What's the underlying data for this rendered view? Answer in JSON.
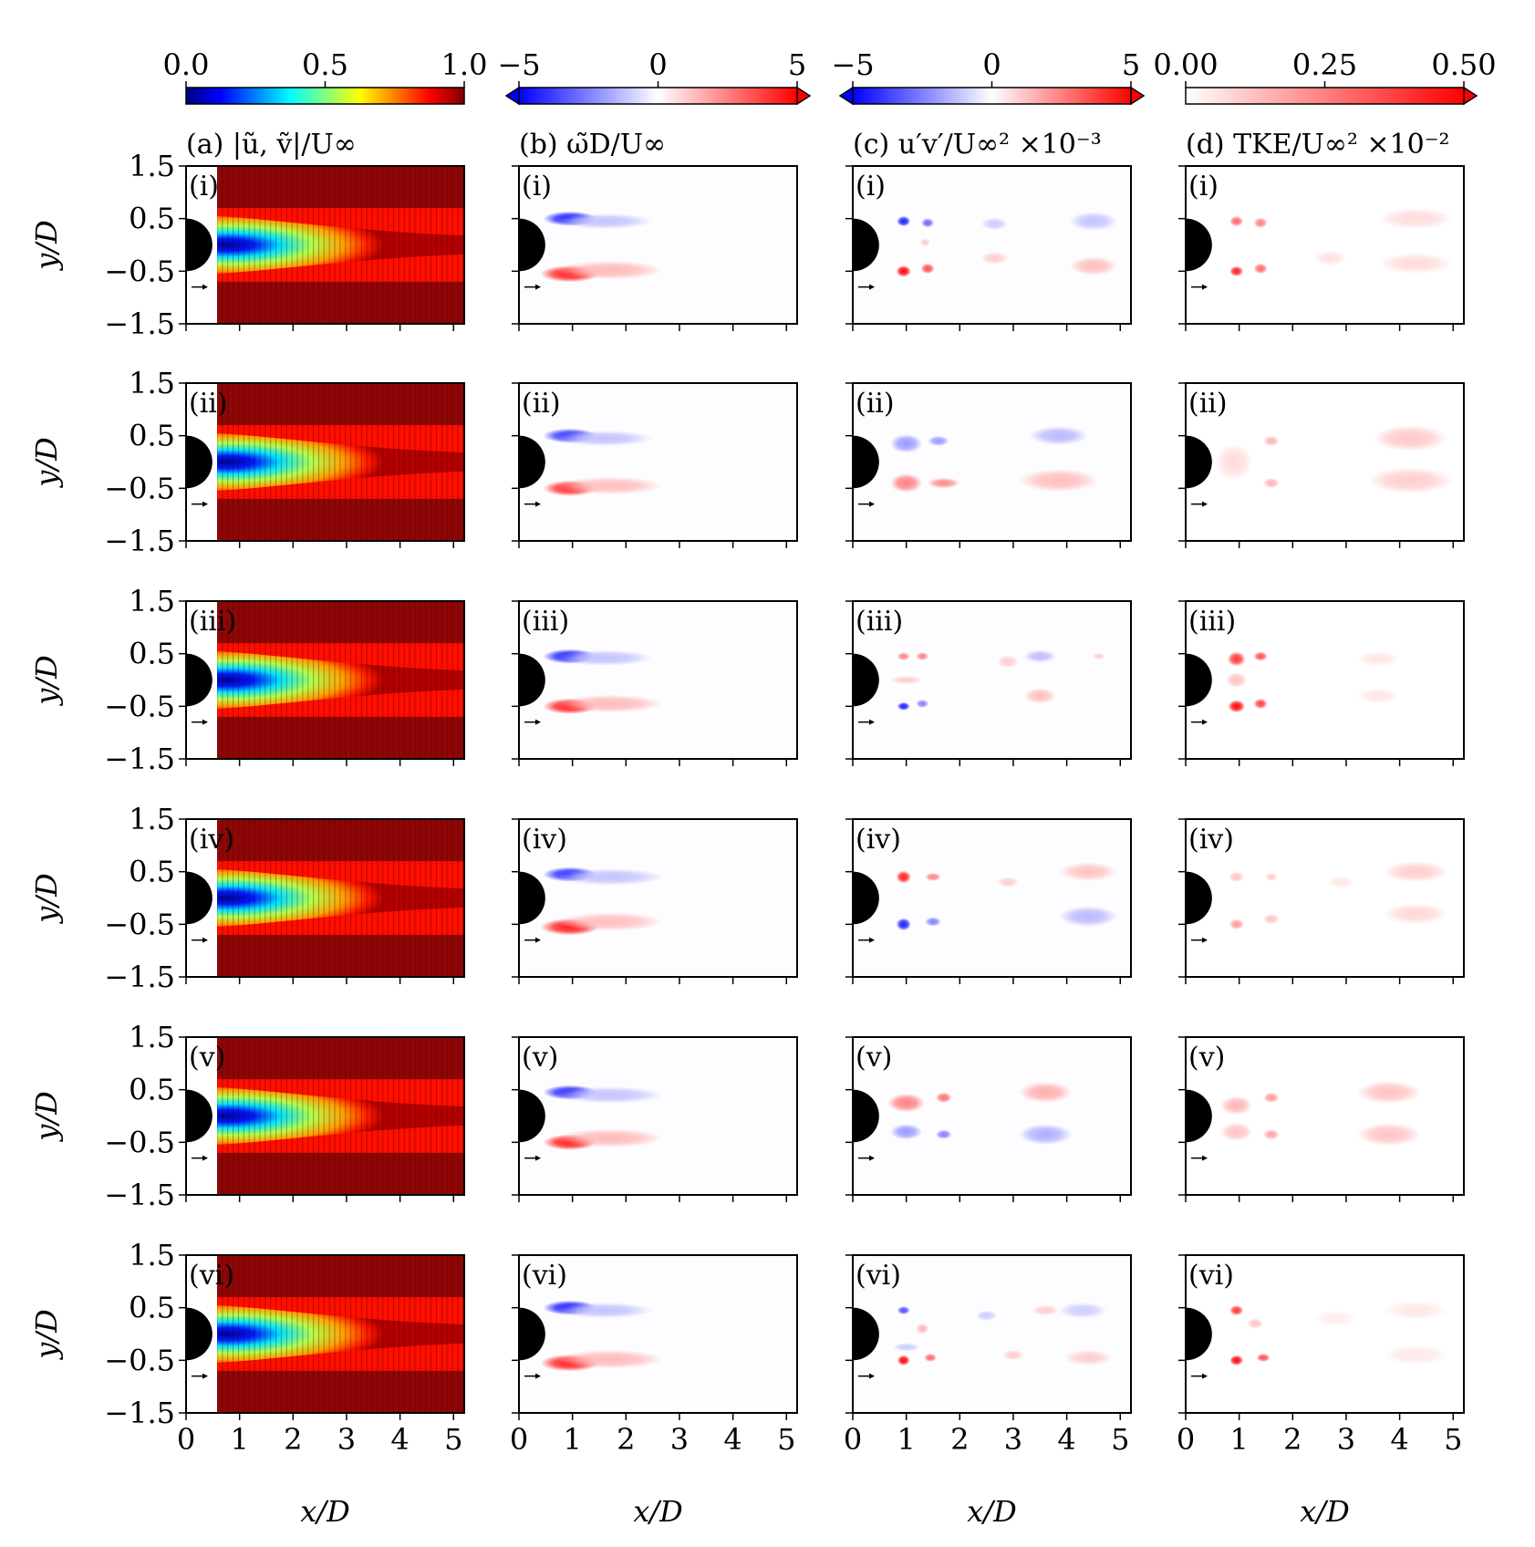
{
  "figure": {
    "ylabel": "y/D",
    "xlabel": "x/D",
    "row_labels": [
      "(i)",
      "(ii)",
      "(iii)",
      "(iv)",
      "(v)",
      "(vi)"
    ],
    "xticks": [
      "0",
      "1",
      "2",
      "3",
      "4",
      "5"
    ],
    "yticks": [
      "1.5",
      "0.5",
      "−0.5",
      "−1.5"
    ]
  },
  "chart_data": [
    {
      "type": "heatmap",
      "panel": "(a)",
      "title": "(a) |ũ, ṽ|/U∞",
      "colormap": "jet",
      "colorbar": {
        "range": [
          0.0,
          1.0
        ],
        "ticks": [
          "0.0",
          "0.5",
          "1.0"
        ],
        "multiplier": "",
        "extend": "none"
      },
      "xlim": [
        0,
        5.2
      ],
      "ylim": [
        -1.5,
        1.5
      ],
      "description_values": {
        "freestream": 1.0,
        "recirculation_min": 0.0
      },
      "cases": [
        "(i)",
        "(ii)",
        "(iii)",
        "(iv)",
        "(v)",
        "(vi)"
      ],
      "blobs": [
        [],
        [],
        [],
        [],
        [],
        []
      ]
    },
    {
      "type": "heatmap",
      "panel": "(b)",
      "title": "(b) ω̃D/U∞",
      "colormap": "bwr",
      "colorbar": {
        "range": [
          -5,
          5
        ],
        "ticks": [
          "−5",
          "0",
          "5"
        ],
        "multiplier": "",
        "extend": "both"
      },
      "xlim": [
        0,
        5.2
      ],
      "ylim": [
        -1.5,
        1.5
      ],
      "cases": [
        "(i)",
        "(ii)",
        "(iii)",
        "(iv)",
        "(v)",
        "(vi)"
      ],
      "blobs": [
        [
          {
            "x": 0.95,
            "y": 0.5,
            "rx": 0.5,
            "ry": 0.14,
            "v": -4.5
          },
          {
            "x": 1.6,
            "y": 0.45,
            "rx": 0.9,
            "ry": 0.15,
            "v": -1.2
          },
          {
            "x": 0.95,
            "y": -0.55,
            "rx": 0.55,
            "ry": 0.16,
            "v": 4.5
          },
          {
            "x": 1.7,
            "y": -0.48,
            "rx": 1.0,
            "ry": 0.18,
            "v": 1.4
          }
        ],
        [
          {
            "x": 0.95,
            "y": 0.5,
            "rx": 0.5,
            "ry": 0.14,
            "v": -4.0
          },
          {
            "x": 1.6,
            "y": 0.45,
            "rx": 0.9,
            "ry": 0.15,
            "v": -1.2
          },
          {
            "x": 0.95,
            "y": -0.5,
            "rx": 0.5,
            "ry": 0.15,
            "v": 4.2
          },
          {
            "x": 1.7,
            "y": -0.45,
            "rx": 1.0,
            "ry": 0.17,
            "v": 1.3
          }
        ],
        [
          {
            "x": 0.95,
            "y": 0.45,
            "rx": 0.5,
            "ry": 0.14,
            "v": -4.5
          },
          {
            "x": 1.6,
            "y": 0.42,
            "rx": 0.9,
            "ry": 0.15,
            "v": -1.2
          },
          {
            "x": 0.95,
            "y": -0.5,
            "rx": 0.5,
            "ry": 0.15,
            "v": 4.5
          },
          {
            "x": 1.7,
            "y": -0.45,
            "rx": 1.0,
            "ry": 0.17,
            "v": 1.4
          }
        ],
        [
          {
            "x": 0.95,
            "y": 0.45,
            "rx": 0.5,
            "ry": 0.14,
            "v": -4.2
          },
          {
            "x": 1.7,
            "y": 0.4,
            "rx": 1.0,
            "ry": 0.16,
            "v": -1.2
          },
          {
            "x": 0.95,
            "y": -0.55,
            "rx": 0.55,
            "ry": 0.16,
            "v": 4.5
          },
          {
            "x": 1.7,
            "y": -0.45,
            "rx": 1.0,
            "ry": 0.18,
            "v": 1.3
          }
        ],
        [
          {
            "x": 0.95,
            "y": 0.45,
            "rx": 0.5,
            "ry": 0.14,
            "v": -4.3
          },
          {
            "x": 1.7,
            "y": 0.4,
            "rx": 1.0,
            "ry": 0.16,
            "v": -1.2
          },
          {
            "x": 0.95,
            "y": -0.5,
            "rx": 0.5,
            "ry": 0.15,
            "v": 4.5
          },
          {
            "x": 1.7,
            "y": -0.42,
            "rx": 1.0,
            "ry": 0.18,
            "v": 1.4
          }
        ],
        [
          {
            "x": 0.95,
            "y": 0.5,
            "rx": 0.5,
            "ry": 0.14,
            "v": -4.5
          },
          {
            "x": 1.6,
            "y": 0.45,
            "rx": 0.9,
            "ry": 0.15,
            "v": -1.2
          },
          {
            "x": 0.95,
            "y": -0.55,
            "rx": 0.55,
            "ry": 0.16,
            "v": 4.5
          },
          {
            "x": 1.7,
            "y": -0.48,
            "rx": 1.0,
            "ry": 0.18,
            "v": 1.4
          }
        ]
      ]
    },
    {
      "type": "heatmap",
      "panel": "(c)",
      "title": "(c) u′v′/U∞² ×10⁻³",
      "colormap": "bwr",
      "colorbar": {
        "range": [
          -5,
          5
        ],
        "ticks": [
          "−5",
          "0",
          "5"
        ],
        "multiplier": "×10⁻³",
        "extend": "both"
      },
      "xlim": [
        0,
        5.2
      ],
      "ylim": [
        -1.5,
        1.5
      ],
      "cases": [
        "(i)",
        "(ii)",
        "(iii)",
        "(iv)",
        "(v)",
        "(vi)"
      ],
      "blobs": [
        [
          {
            "x": 0.95,
            "y": 0.45,
            "rx": 0.13,
            "ry": 0.1,
            "v": -4.5
          },
          {
            "x": 1.4,
            "y": 0.42,
            "rx": 0.12,
            "ry": 0.09,
            "v": -3.0
          },
          {
            "x": 0.95,
            "y": -0.5,
            "rx": 0.14,
            "ry": 0.11,
            "v": 5
          },
          {
            "x": 1.4,
            "y": -0.45,
            "rx": 0.13,
            "ry": 0.1,
            "v": 3.5
          },
          {
            "x": 1.35,
            "y": 0.05,
            "rx": 0.1,
            "ry": 0.08,
            "v": 1.0
          },
          {
            "x": 2.65,
            "y": 0.4,
            "rx": 0.25,
            "ry": 0.12,
            "v": -1.0
          },
          {
            "x": 2.65,
            "y": -0.25,
            "rx": 0.25,
            "ry": 0.12,
            "v": 1.0
          },
          {
            "x": 4.5,
            "y": 0.45,
            "rx": 0.45,
            "ry": 0.18,
            "v": -1.2
          },
          {
            "x": 4.5,
            "y": -0.4,
            "rx": 0.45,
            "ry": 0.18,
            "v": 1.3
          }
        ],
        [
          {
            "x": 1.0,
            "y": 0.35,
            "rx": 0.3,
            "ry": 0.18,
            "v": -2.0
          },
          {
            "x": 1.6,
            "y": 0.4,
            "rx": 0.2,
            "ry": 0.1,
            "v": -2.0
          },
          {
            "x": 1.0,
            "y": -0.4,
            "rx": 0.3,
            "ry": 0.18,
            "v": 2.5
          },
          {
            "x": 1.7,
            "y": -0.4,
            "rx": 0.3,
            "ry": 0.1,
            "v": 2.3
          },
          {
            "x": 3.85,
            "y": 0.5,
            "rx": 0.55,
            "ry": 0.18,
            "v": -1.4
          },
          {
            "x": 3.85,
            "y": -0.35,
            "rx": 0.75,
            "ry": 0.22,
            "v": 1.3
          }
        ],
        [
          {
            "x": 0.95,
            "y": 0.45,
            "rx": 0.12,
            "ry": 0.08,
            "v": 2.5
          },
          {
            "x": 1.3,
            "y": 0.45,
            "rx": 0.12,
            "ry": 0.08,
            "v": 2.5
          },
          {
            "x": 0.95,
            "y": -0.5,
            "rx": 0.12,
            "ry": 0.08,
            "v": -4.5
          },
          {
            "x": 1.3,
            "y": -0.45,
            "rx": 0.12,
            "ry": 0.08,
            "v": -2.5
          },
          {
            "x": 1.0,
            "y": 0.0,
            "rx": 0.3,
            "ry": 0.08,
            "v": 1.0
          },
          {
            "x": 2.9,
            "y": 0.35,
            "rx": 0.2,
            "ry": 0.12,
            "v": 1.0
          },
          {
            "x": 3.5,
            "y": 0.45,
            "rx": 0.3,
            "ry": 0.12,
            "v": -1.3
          },
          {
            "x": 3.5,
            "y": -0.3,
            "rx": 0.3,
            "ry": 0.15,
            "v": 1.3
          },
          {
            "x": 4.6,
            "y": 0.45,
            "rx": 0.12,
            "ry": 0.06,
            "v": 1.0
          }
        ],
        [
          {
            "x": 0.95,
            "y": 0.4,
            "rx": 0.14,
            "ry": 0.12,
            "v": 4.5
          },
          {
            "x": 1.5,
            "y": 0.4,
            "rx": 0.15,
            "ry": 0.08,
            "v": 2.5
          },
          {
            "x": 0.95,
            "y": -0.5,
            "rx": 0.14,
            "ry": 0.12,
            "v": -4.5
          },
          {
            "x": 1.5,
            "y": -0.45,
            "rx": 0.15,
            "ry": 0.09,
            "v": -2.5
          },
          {
            "x": 2.9,
            "y": 0.3,
            "rx": 0.2,
            "ry": 0.1,
            "v": 1.0
          },
          {
            "x": 4.4,
            "y": 0.5,
            "rx": 0.55,
            "ry": 0.18,
            "v": 1.2
          },
          {
            "x": 4.4,
            "y": -0.35,
            "rx": 0.55,
            "ry": 0.2,
            "v": -1.4
          }
        ],
        [
          {
            "x": 1.0,
            "y": 0.25,
            "rx": 0.35,
            "ry": 0.18,
            "v": 2.5
          },
          {
            "x": 1.7,
            "y": 0.35,
            "rx": 0.15,
            "ry": 0.1,
            "v": 2.8
          },
          {
            "x": 1.0,
            "y": -0.3,
            "rx": 0.3,
            "ry": 0.15,
            "v": -2.0
          },
          {
            "x": 1.7,
            "y": -0.35,
            "rx": 0.15,
            "ry": 0.09,
            "v": -2.5
          },
          {
            "x": 3.6,
            "y": 0.45,
            "rx": 0.5,
            "ry": 0.2,
            "v": 1.6
          },
          {
            "x": 3.6,
            "y": -0.35,
            "rx": 0.5,
            "ry": 0.2,
            "v": -1.6
          }
        ],
        [
          {
            "x": 0.95,
            "y": 0.45,
            "rx": 0.12,
            "ry": 0.08,
            "v": -3.5
          },
          {
            "x": 1.3,
            "y": 0.1,
            "rx": 0.12,
            "ry": 0.1,
            "v": 1.5
          },
          {
            "x": 0.95,
            "y": -0.5,
            "rx": 0.12,
            "ry": 0.1,
            "v": 5
          },
          {
            "x": 1.45,
            "y": -0.45,
            "rx": 0.12,
            "ry": 0.08,
            "v": 3.0
          },
          {
            "x": 1.0,
            "y": -0.25,
            "rx": 0.25,
            "ry": 0.08,
            "v": -1.0
          },
          {
            "x": 2.5,
            "y": 0.35,
            "rx": 0.2,
            "ry": 0.1,
            "v": -1.0
          },
          {
            "x": 3.6,
            "y": 0.45,
            "rx": 0.25,
            "ry": 0.1,
            "v": 1.0
          },
          {
            "x": 4.3,
            "y": 0.45,
            "rx": 0.45,
            "ry": 0.15,
            "v": -1.0
          },
          {
            "x": 4.4,
            "y": -0.45,
            "rx": 0.45,
            "ry": 0.15,
            "v": 1.0
          },
          {
            "x": 3.0,
            "y": -0.4,
            "rx": 0.2,
            "ry": 0.1,
            "v": 1.0
          }
        ]
      ]
    },
    {
      "type": "heatmap",
      "panel": "(d)",
      "title": "(d) TKE/U∞² ×10⁻²",
      "colormap": "reds",
      "colorbar": {
        "range": [
          0.0,
          0.5
        ],
        "ticks": [
          "0.00",
          "0.25",
          "0.50"
        ],
        "multiplier": "×10⁻²",
        "extend": "max"
      },
      "xlim": [
        0,
        5.2
      ],
      "ylim": [
        -1.5,
        1.5
      ],
      "cases": [
        "(i)",
        "(ii)",
        "(iii)",
        "(iv)",
        "(v)",
        "(vi)"
      ],
      "blobs": [
        [
          {
            "x": 0.95,
            "y": 0.45,
            "rx": 0.13,
            "ry": 0.1,
            "v": 0.3
          },
          {
            "x": 1.4,
            "y": 0.42,
            "rx": 0.13,
            "ry": 0.1,
            "v": 0.25
          },
          {
            "x": 0.95,
            "y": -0.5,
            "rx": 0.13,
            "ry": 0.1,
            "v": 0.45
          },
          {
            "x": 1.4,
            "y": -0.45,
            "rx": 0.13,
            "ry": 0.1,
            "v": 0.3
          },
          {
            "x": 2.7,
            "y": -0.25,
            "rx": 0.3,
            "ry": 0.15,
            "v": 0.06
          },
          {
            "x": 4.3,
            "y": 0.5,
            "rx": 0.7,
            "ry": 0.2,
            "v": 0.07
          },
          {
            "x": 4.3,
            "y": -0.35,
            "rx": 0.7,
            "ry": 0.2,
            "v": 0.07
          }
        ],
        [
          {
            "x": 0.9,
            "y": 0.0,
            "rx": 0.35,
            "ry": 0.35,
            "v": 0.07
          },
          {
            "x": 1.6,
            "y": 0.4,
            "rx": 0.15,
            "ry": 0.1,
            "v": 0.15
          },
          {
            "x": 1.6,
            "y": -0.4,
            "rx": 0.15,
            "ry": 0.1,
            "v": 0.15
          },
          {
            "x": 4.2,
            "y": 0.45,
            "rx": 0.7,
            "ry": 0.25,
            "v": 0.11
          },
          {
            "x": 4.2,
            "y": -0.35,
            "rx": 0.8,
            "ry": 0.25,
            "v": 0.1
          }
        ],
        [
          {
            "x": 0.95,
            "y": 0.4,
            "rx": 0.17,
            "ry": 0.14,
            "v": 0.4
          },
          {
            "x": 1.4,
            "y": 0.45,
            "rx": 0.13,
            "ry": 0.09,
            "v": 0.35
          },
          {
            "x": 0.95,
            "y": -0.5,
            "rx": 0.16,
            "ry": 0.12,
            "v": 0.5
          },
          {
            "x": 1.4,
            "y": -0.45,
            "rx": 0.13,
            "ry": 0.1,
            "v": 0.38
          },
          {
            "x": 0.95,
            "y": 0.0,
            "rx": 0.2,
            "ry": 0.15,
            "v": 0.12
          },
          {
            "x": 3.6,
            "y": 0.4,
            "rx": 0.4,
            "ry": 0.15,
            "v": 0.05
          },
          {
            "x": 3.6,
            "y": -0.3,
            "rx": 0.4,
            "ry": 0.15,
            "v": 0.05
          }
        ],
        [
          {
            "x": 0.95,
            "y": 0.4,
            "rx": 0.15,
            "ry": 0.1,
            "v": 0.12
          },
          {
            "x": 1.6,
            "y": 0.4,
            "rx": 0.12,
            "ry": 0.08,
            "v": 0.1
          },
          {
            "x": 0.95,
            "y": -0.5,
            "rx": 0.14,
            "ry": 0.1,
            "v": 0.2
          },
          {
            "x": 1.6,
            "y": -0.4,
            "rx": 0.15,
            "ry": 0.1,
            "v": 0.12
          },
          {
            "x": 2.9,
            "y": 0.3,
            "rx": 0.25,
            "ry": 0.12,
            "v": 0.05
          },
          {
            "x": 4.3,
            "y": 0.5,
            "rx": 0.6,
            "ry": 0.2,
            "v": 0.1
          },
          {
            "x": 4.3,
            "y": -0.3,
            "rx": 0.6,
            "ry": 0.2,
            "v": 0.08
          }
        ],
        [
          {
            "x": 0.95,
            "y": 0.2,
            "rx": 0.3,
            "ry": 0.18,
            "v": 0.15
          },
          {
            "x": 1.6,
            "y": 0.35,
            "rx": 0.15,
            "ry": 0.1,
            "v": 0.2
          },
          {
            "x": 0.95,
            "y": -0.3,
            "rx": 0.3,
            "ry": 0.18,
            "v": 0.12
          },
          {
            "x": 1.6,
            "y": -0.35,
            "rx": 0.15,
            "ry": 0.1,
            "v": 0.18
          },
          {
            "x": 3.8,
            "y": 0.45,
            "rx": 0.6,
            "ry": 0.22,
            "v": 0.12
          },
          {
            "x": 3.8,
            "y": -0.35,
            "rx": 0.6,
            "ry": 0.22,
            "v": 0.12
          }
        ],
        [
          {
            "x": 0.95,
            "y": 0.45,
            "rx": 0.13,
            "ry": 0.1,
            "v": 0.4
          },
          {
            "x": 1.3,
            "y": 0.2,
            "rx": 0.15,
            "ry": 0.1,
            "v": 0.12
          },
          {
            "x": 0.95,
            "y": -0.5,
            "rx": 0.13,
            "ry": 0.1,
            "v": 0.5
          },
          {
            "x": 1.45,
            "y": -0.45,
            "rx": 0.13,
            "ry": 0.08,
            "v": 0.35
          },
          {
            "x": 2.8,
            "y": 0.3,
            "rx": 0.4,
            "ry": 0.15,
            "v": 0.04
          },
          {
            "x": 4.3,
            "y": 0.45,
            "rx": 0.6,
            "ry": 0.18,
            "v": 0.05
          },
          {
            "x": 4.3,
            "y": -0.4,
            "rx": 0.6,
            "ry": 0.18,
            "v": 0.05
          }
        ]
      ]
    }
  ]
}
